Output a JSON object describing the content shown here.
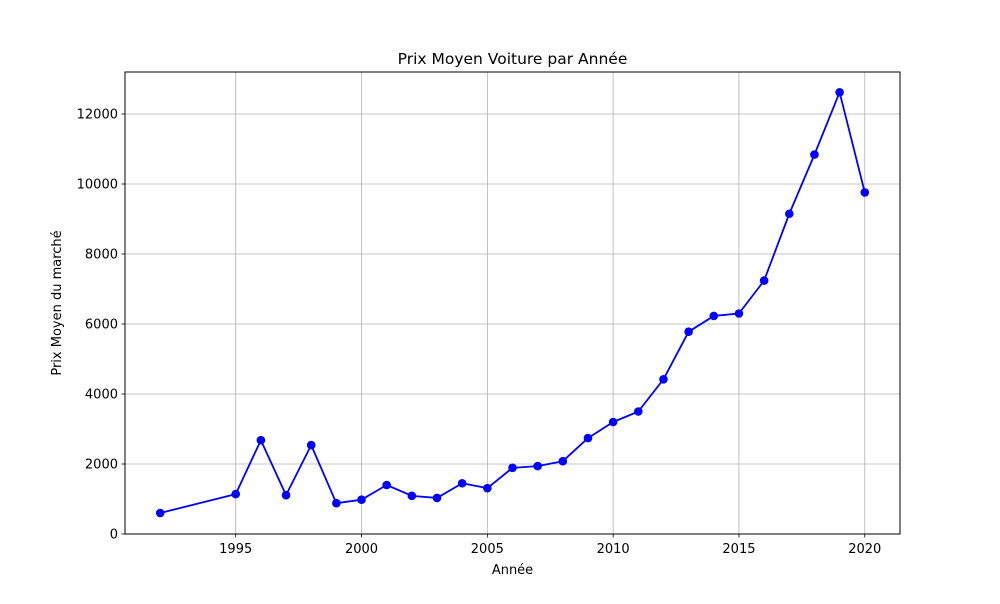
{
  "chart_data": {
    "type": "line",
    "title": "Prix Moyen Voiture par Année",
    "xlabel": "Année",
    "ylabel": "Prix Moyen du marché",
    "xlim": [
      1990.6,
      2021.4
    ],
    "ylim": [
      0,
      13200
    ],
    "xticks": [
      1995,
      2000,
      2005,
      2010,
      2015,
      2020
    ],
    "yticks": [
      0,
      2000,
      4000,
      6000,
      8000,
      10000,
      12000
    ],
    "grid": true,
    "series_color": "#0000ff",
    "marker": "circle",
    "x": [
      1992,
      1995,
      1996,
      1997,
      1998,
      1999,
      2000,
      2001,
      2002,
      2003,
      2004,
      2005,
      2006,
      2007,
      2008,
      2009,
      2010,
      2011,
      2012,
      2013,
      2014,
      2015,
      2016,
      2017,
      2018,
      2019,
      2020
    ],
    "y": [
      600,
      1140,
      2680,
      1110,
      2540,
      880,
      980,
      1400,
      1090,
      1030,
      1450,
      1310,
      1890,
      1940,
      2080,
      2740,
      3200,
      3500,
      4420,
      5780,
      6230,
      6300,
      7240,
      9150,
      10840,
      12620,
      9760
    ]
  }
}
